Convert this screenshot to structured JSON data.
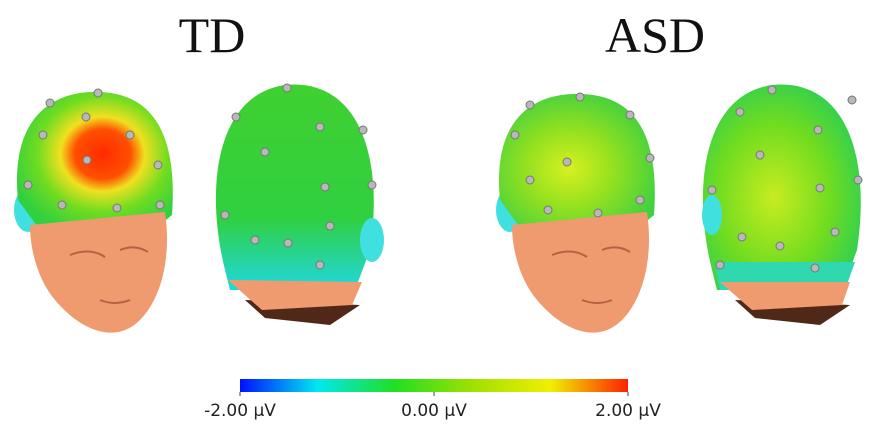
{
  "groups": [
    {
      "label": "TD"
    },
    {
      "label": "ASD"
    }
  ],
  "colorbar": {
    "lim": [
      -2,
      2
    ],
    "colors": [
      "#0010ff",
      "#00e8f0",
      "#20e020",
      "#a0e000",
      "#f0f000",
      "#ff2000"
    ],
    "ticks": [
      {
        "value": -2,
        "label": "-2.00 µV"
      },
      {
        "value": 0,
        "label": "0.00 µV"
      },
      {
        "value": 2,
        "label": "2.00 µV"
      }
    ]
  }
}
